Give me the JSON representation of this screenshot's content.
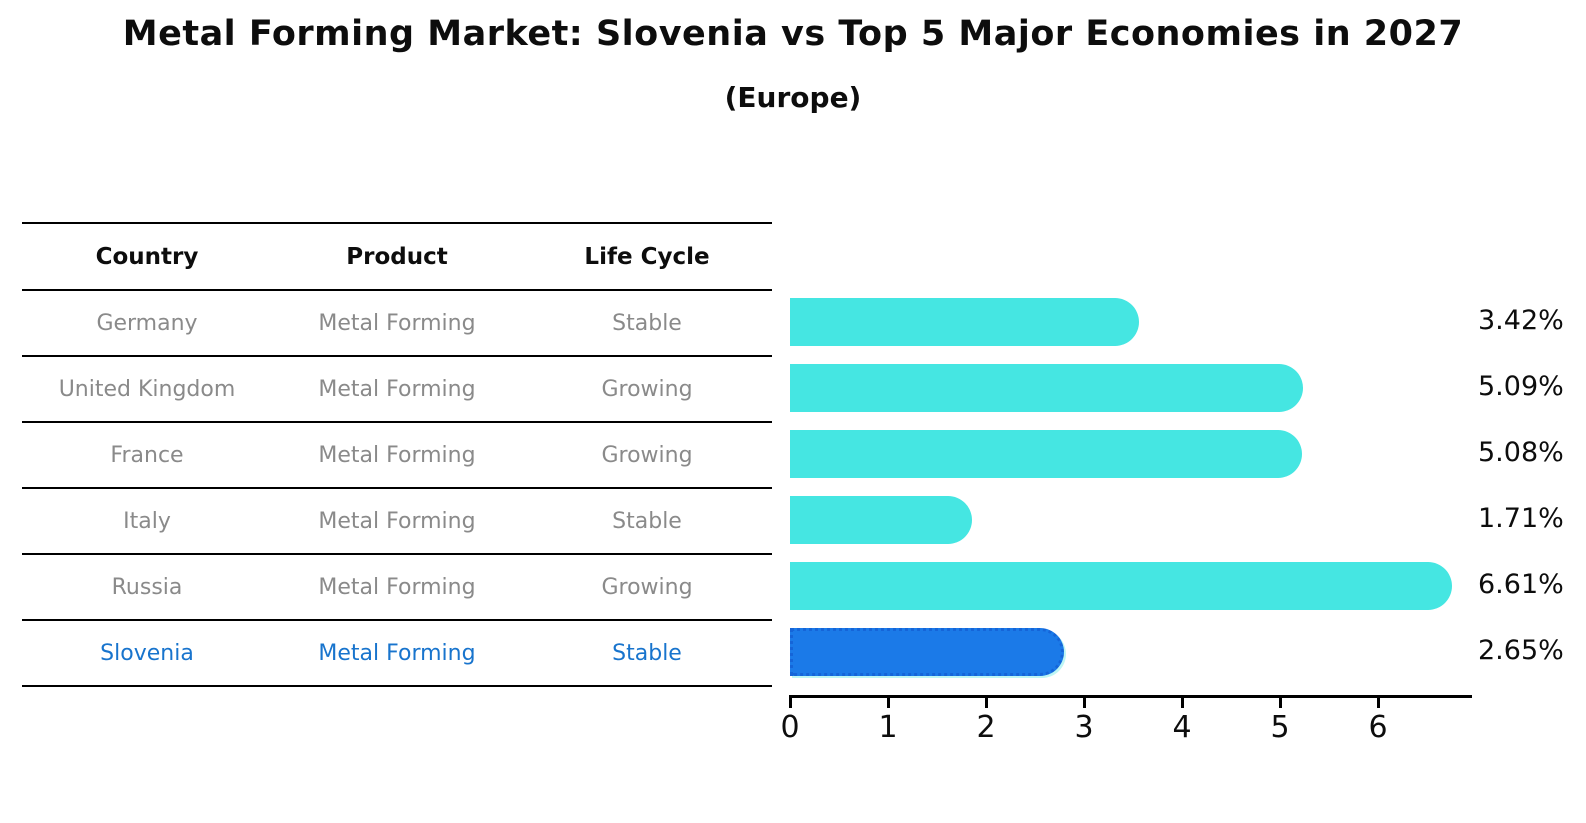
{
  "title": "Metal Forming Market: Slovenia vs Top 5 Major Economies in 2027",
  "subtitle": "(Europe)",
  "table": {
    "headers": [
      "Country",
      "Product",
      "Life Cycle"
    ],
    "rows": [
      {
        "country": "Germany",
        "product": "Metal Forming",
        "life_cycle": "Stable",
        "highlight": false
      },
      {
        "country": "United Kingdom",
        "product": "Metal Forming",
        "life_cycle": "Growing",
        "highlight": false
      },
      {
        "country": "France",
        "product": "Metal Forming",
        "life_cycle": "Growing",
        "highlight": false
      },
      {
        "country": "Italy",
        "product": "Metal Forming",
        "life_cycle": "Stable",
        "highlight": false
      },
      {
        "country": "Russia",
        "product": "Metal Forming",
        "life_cycle": "Growing",
        "highlight": false
      },
      {
        "country": "Slovenia",
        "product": "Metal Forming",
        "life_cycle": "Stable",
        "highlight": true
      }
    ]
  },
  "chart_data": {
    "type": "bar",
    "orientation": "horizontal",
    "title": "Metal Forming Market: Slovenia vs Top 5 Major Economies in 2027 (Europe)",
    "categories": [
      "Germany",
      "United Kingdom",
      "France",
      "Italy",
      "Russia",
      "Slovenia"
    ],
    "values": [
      3.42,
      5.09,
      5.08,
      1.71,
      6.61,
      2.65
    ],
    "value_labels": [
      "3.42%",
      "5.09%",
      "5.08%",
      "1.71%",
      "6.61%",
      "2.65%"
    ],
    "unit": "%",
    "x_ticks": [
      0,
      1,
      2,
      3,
      4,
      5,
      6
    ],
    "xlim": [
      0,
      7.0
    ],
    "grid": false,
    "legend": false,
    "highlight_index": 5
  },
  "colors": {
    "bar": "#45E6E2",
    "highlight_bar": "#1B7AE8",
    "highlight_border": "#1565D8",
    "highlight_text": "#1874CD",
    "header_text": "#0d0d0d",
    "row_text": "#8a8a8a",
    "value_label": "#0d0d0d",
    "axis": "#000000",
    "background": "#ffffff"
  }
}
